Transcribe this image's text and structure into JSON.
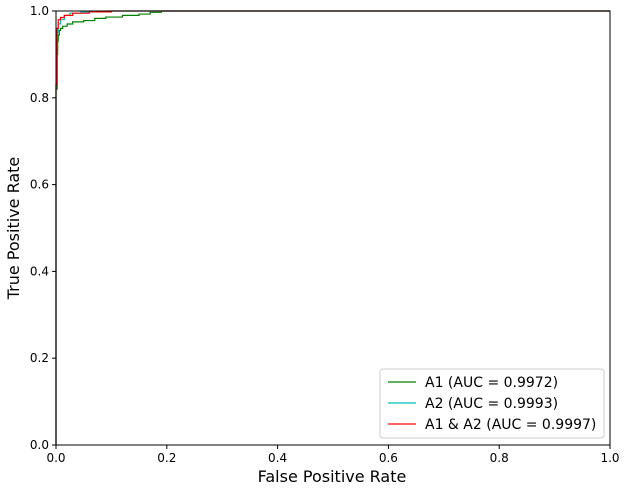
{
  "chart_data": {
    "type": "line",
    "title": "",
    "xlabel": "False Positive Rate",
    "ylabel": "True Positive Rate",
    "xlim": [
      0,
      1.0
    ],
    "ylim": [
      0,
      1.0
    ],
    "grid": false,
    "legend_position": "lower-right",
    "x_ticks": [
      "0.0",
      "0.2",
      "0.4",
      "0.6",
      "0.8",
      "1.0"
    ],
    "y_ticks": [
      "0.0",
      "0.2",
      "0.4",
      "0.6",
      "0.8",
      "1.0"
    ],
    "series": [
      {
        "name": "A1 (AUC = 0.9972)",
        "color": "#008000",
        "points": [
          [
            0,
            0
          ],
          [
            0,
            0.82
          ],
          [
            0.002,
            0.82
          ],
          [
            0.002,
            0.9
          ],
          [
            0.003,
            0.9
          ],
          [
            0.003,
            0.93
          ],
          [
            0.004,
            0.93
          ],
          [
            0.004,
            0.945
          ],
          [
            0.006,
            0.945
          ],
          [
            0.006,
            0.955
          ],
          [
            0.008,
            0.955
          ],
          [
            0.008,
            0.96
          ],
          [
            0.012,
            0.96
          ],
          [
            0.012,
            0.965
          ],
          [
            0.02,
            0.965
          ],
          [
            0.02,
            0.97
          ],
          [
            0.03,
            0.97
          ],
          [
            0.03,
            0.975
          ],
          [
            0.05,
            0.975
          ],
          [
            0.05,
            0.978
          ],
          [
            0.07,
            0.978
          ],
          [
            0.07,
            0.983
          ],
          [
            0.09,
            0.983
          ],
          [
            0.09,
            0.986
          ],
          [
            0.12,
            0.986
          ],
          [
            0.12,
            0.99
          ],
          [
            0.15,
            0.99
          ],
          [
            0.15,
            0.993
          ],
          [
            0.17,
            0.993
          ],
          [
            0.17,
            0.997
          ],
          [
            0.19,
            0.997
          ],
          [
            0.19,
            1.0
          ],
          [
            1.0,
            1.0
          ]
        ]
      },
      {
        "name": "A2 (AUC = 0.9993)",
        "color": "#00bfbf",
        "points": [
          [
            0,
            0
          ],
          [
            0,
            0.83
          ],
          [
            0.002,
            0.83
          ],
          [
            0.002,
            0.95
          ],
          [
            0.004,
            0.95
          ],
          [
            0.004,
            0.97
          ],
          [
            0.008,
            0.97
          ],
          [
            0.008,
            0.98
          ],
          [
            0.015,
            0.98
          ],
          [
            0.015,
            0.99
          ],
          [
            0.025,
            0.99
          ],
          [
            0.025,
            0.995
          ],
          [
            0.045,
            0.995
          ],
          [
            0.045,
            0.998
          ],
          [
            0.09,
            0.998
          ],
          [
            0.09,
            1.0
          ],
          [
            1.0,
            1.0
          ]
        ]
      },
      {
        "name": "A1 & A2 (AUC = 0.9997)",
        "color": "#ff0000",
        "points": [
          [
            0,
            0
          ],
          [
            0,
            0.83
          ],
          [
            0.002,
            0.83
          ],
          [
            0.002,
            0.96
          ],
          [
            0.004,
            0.96
          ],
          [
            0.004,
            0.98
          ],
          [
            0.008,
            0.98
          ],
          [
            0.008,
            0.985
          ],
          [
            0.015,
            0.985
          ],
          [
            0.015,
            0.99
          ],
          [
            0.03,
            0.99
          ],
          [
            0.03,
            0.995
          ],
          [
            0.06,
            0.995
          ],
          [
            0.06,
            0.998
          ],
          [
            0.1,
            0.998
          ],
          [
            0.1,
            1.0
          ],
          [
            1.0,
            1.0
          ]
        ]
      }
    ]
  }
}
